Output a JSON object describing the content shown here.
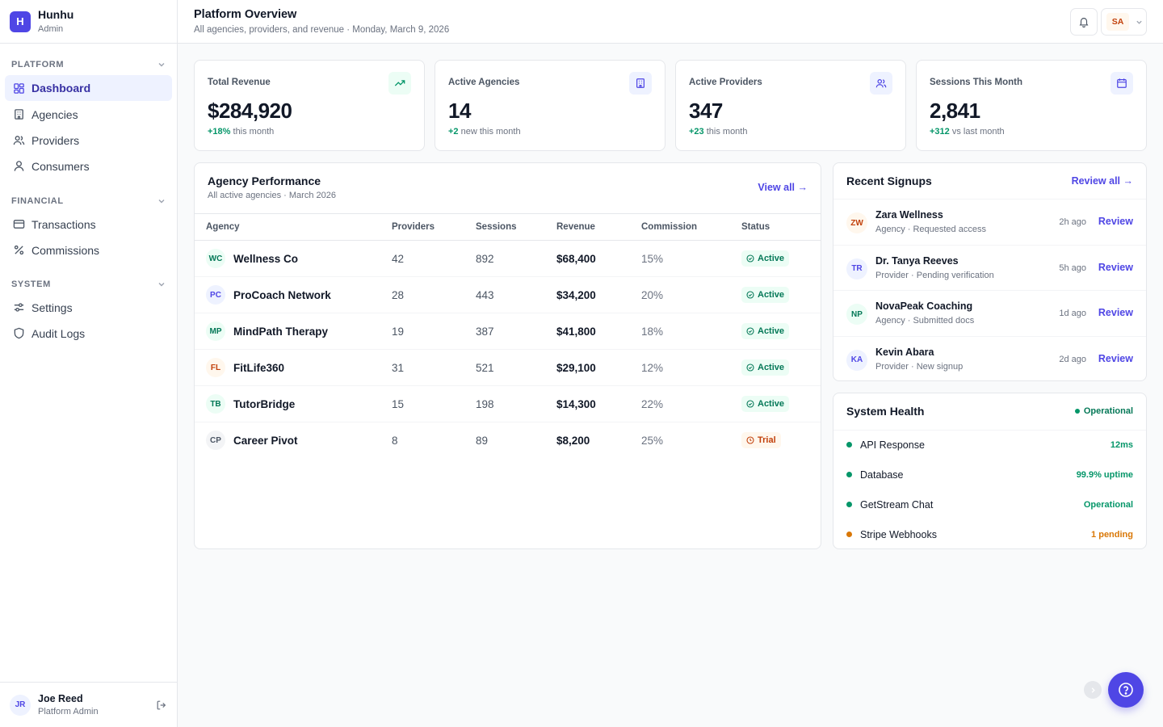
{
  "brand": {
    "logo_letter": "H",
    "name": "Hunhu",
    "role": "Admin"
  },
  "sidebar": {
    "sections": [
      {
        "label": "PLATFORM",
        "items": [
          {
            "label": "Dashboard",
            "icon": "dashboard-icon",
            "active": true
          },
          {
            "label": "Agencies",
            "icon": "building-icon"
          },
          {
            "label": "Providers",
            "icon": "users-icon"
          },
          {
            "label": "Consumers",
            "icon": "user-icon"
          }
        ]
      },
      {
        "label": "FINANCIAL",
        "items": [
          {
            "label": "Transactions",
            "icon": "credit-card-icon"
          },
          {
            "label": "Commissions",
            "icon": "percent-icon"
          }
        ]
      },
      {
        "label": "SYSTEM",
        "items": [
          {
            "label": "Settings",
            "icon": "sliders-icon"
          },
          {
            "label": "Audit Logs",
            "icon": "shield-icon"
          }
        ]
      }
    ],
    "user": {
      "initials": "JR",
      "name": "Joe Reed",
      "role": "Platform Admin"
    }
  },
  "header": {
    "title": "Platform Overview",
    "subtitle": "All agencies, providers, and revenue · Monday, March 9, 2026",
    "user_initials": "SA"
  },
  "stats": [
    {
      "label": "Total Revenue",
      "value": "$284,920",
      "delta": "+18%",
      "delta_text": " this month",
      "icon": "trending-up-icon",
      "icon_bg": "#ecfdf5",
      "icon_color": "#059669"
    },
    {
      "label": "Active Agencies",
      "value": "14",
      "delta": "+2",
      "delta_text": " new this month",
      "icon": "building-icon",
      "icon_bg": "#eef2ff",
      "icon_color": "#4f46e5"
    },
    {
      "label": "Active Providers",
      "value": "347",
      "delta": "+23",
      "delta_text": " this month",
      "icon": "users-icon",
      "icon_bg": "#eef2ff",
      "icon_color": "#4f46e5"
    },
    {
      "label": "Sessions This Month",
      "value": "2,841",
      "delta": "+312",
      "delta_text": " vs last month",
      "icon": "calendar-icon",
      "icon_bg": "#eef2ff",
      "icon_color": "#4f46e5"
    }
  ],
  "agency_performance": {
    "title": "Agency Performance",
    "subtitle": "All active agencies · March 2026",
    "view_all": "View all →",
    "columns": [
      "Agency",
      "Providers",
      "Sessions",
      "Revenue",
      "Commission",
      "Status"
    ],
    "rows": [
      {
        "initials": "WC",
        "name": "Wellness Co",
        "providers": "42",
        "sessions": "892",
        "revenue": "$68,400",
        "commission": "15%",
        "status": "Active",
        "av_bg": "#ecfdf5",
        "av_color": "#047857"
      },
      {
        "initials": "PC",
        "name": "ProCoach Network",
        "providers": "28",
        "sessions": "443",
        "revenue": "$34,200",
        "commission": "20%",
        "status": "Active",
        "av_bg": "#eef2ff",
        "av_color": "#4f46e5"
      },
      {
        "initials": "MP",
        "name": "MindPath Therapy",
        "providers": "19",
        "sessions": "387",
        "revenue": "$41,800",
        "commission": "18%",
        "status": "Active",
        "av_bg": "#ecfdf5",
        "av_color": "#047857"
      },
      {
        "initials": "FL",
        "name": "FitLife360",
        "providers": "31",
        "sessions": "521",
        "revenue": "$29,100",
        "commission": "12%",
        "status": "Active",
        "av_bg": "#fff7ed",
        "av_color": "#c2410c"
      },
      {
        "initials": "TB",
        "name": "TutorBridge",
        "providers": "15",
        "sessions": "198",
        "revenue": "$14,300",
        "commission": "22%",
        "status": "Active",
        "av_bg": "#ecfdf5",
        "av_color": "#047857"
      },
      {
        "initials": "CP",
        "name": "Career Pivot",
        "providers": "8",
        "sessions": "89",
        "revenue": "$8,200",
        "commission": "25%",
        "status": "Trial",
        "av_bg": "#f3f4f6",
        "av_color": "#4b5563"
      }
    ]
  },
  "recent_signups": {
    "title": "Recent Signups",
    "review_all": "Review all →",
    "items": [
      {
        "initials": "ZW",
        "name": "Zara Wellness",
        "meta": "Agency · Requested access",
        "time": "2h ago",
        "action": "Review",
        "av_bg": "#fff7ed",
        "av_color": "#c2410c"
      },
      {
        "initials": "TR",
        "name": "Dr. Tanya Reeves",
        "meta": "Provider · Pending verification",
        "time": "5h ago",
        "action": "Review",
        "av_bg": "#eef2ff",
        "av_color": "#4f46e5"
      },
      {
        "initials": "NP",
        "name": "NovaPeak Coaching",
        "meta": "Agency · Submitted docs",
        "time": "1d ago",
        "action": "Review",
        "av_bg": "#ecfdf5",
        "av_color": "#047857"
      },
      {
        "initials": "KA",
        "name": "Kevin Abara",
        "meta": "Provider · New signup",
        "time": "2d ago",
        "action": "Review",
        "av_bg": "#eef2ff",
        "av_color": "#4f46e5"
      }
    ]
  },
  "system_health": {
    "title": "System Health",
    "status": "Operational",
    "items": [
      {
        "name": "API Response",
        "value": "12ms",
        "color": "#059669"
      },
      {
        "name": "Database",
        "value": "99.9% uptime",
        "color": "#059669"
      },
      {
        "name": "GetStream Chat",
        "value": "Operational",
        "color": "#059669"
      },
      {
        "name": "Stripe Webhooks",
        "value": "1 pending",
        "color": "#d97706"
      }
    ]
  }
}
